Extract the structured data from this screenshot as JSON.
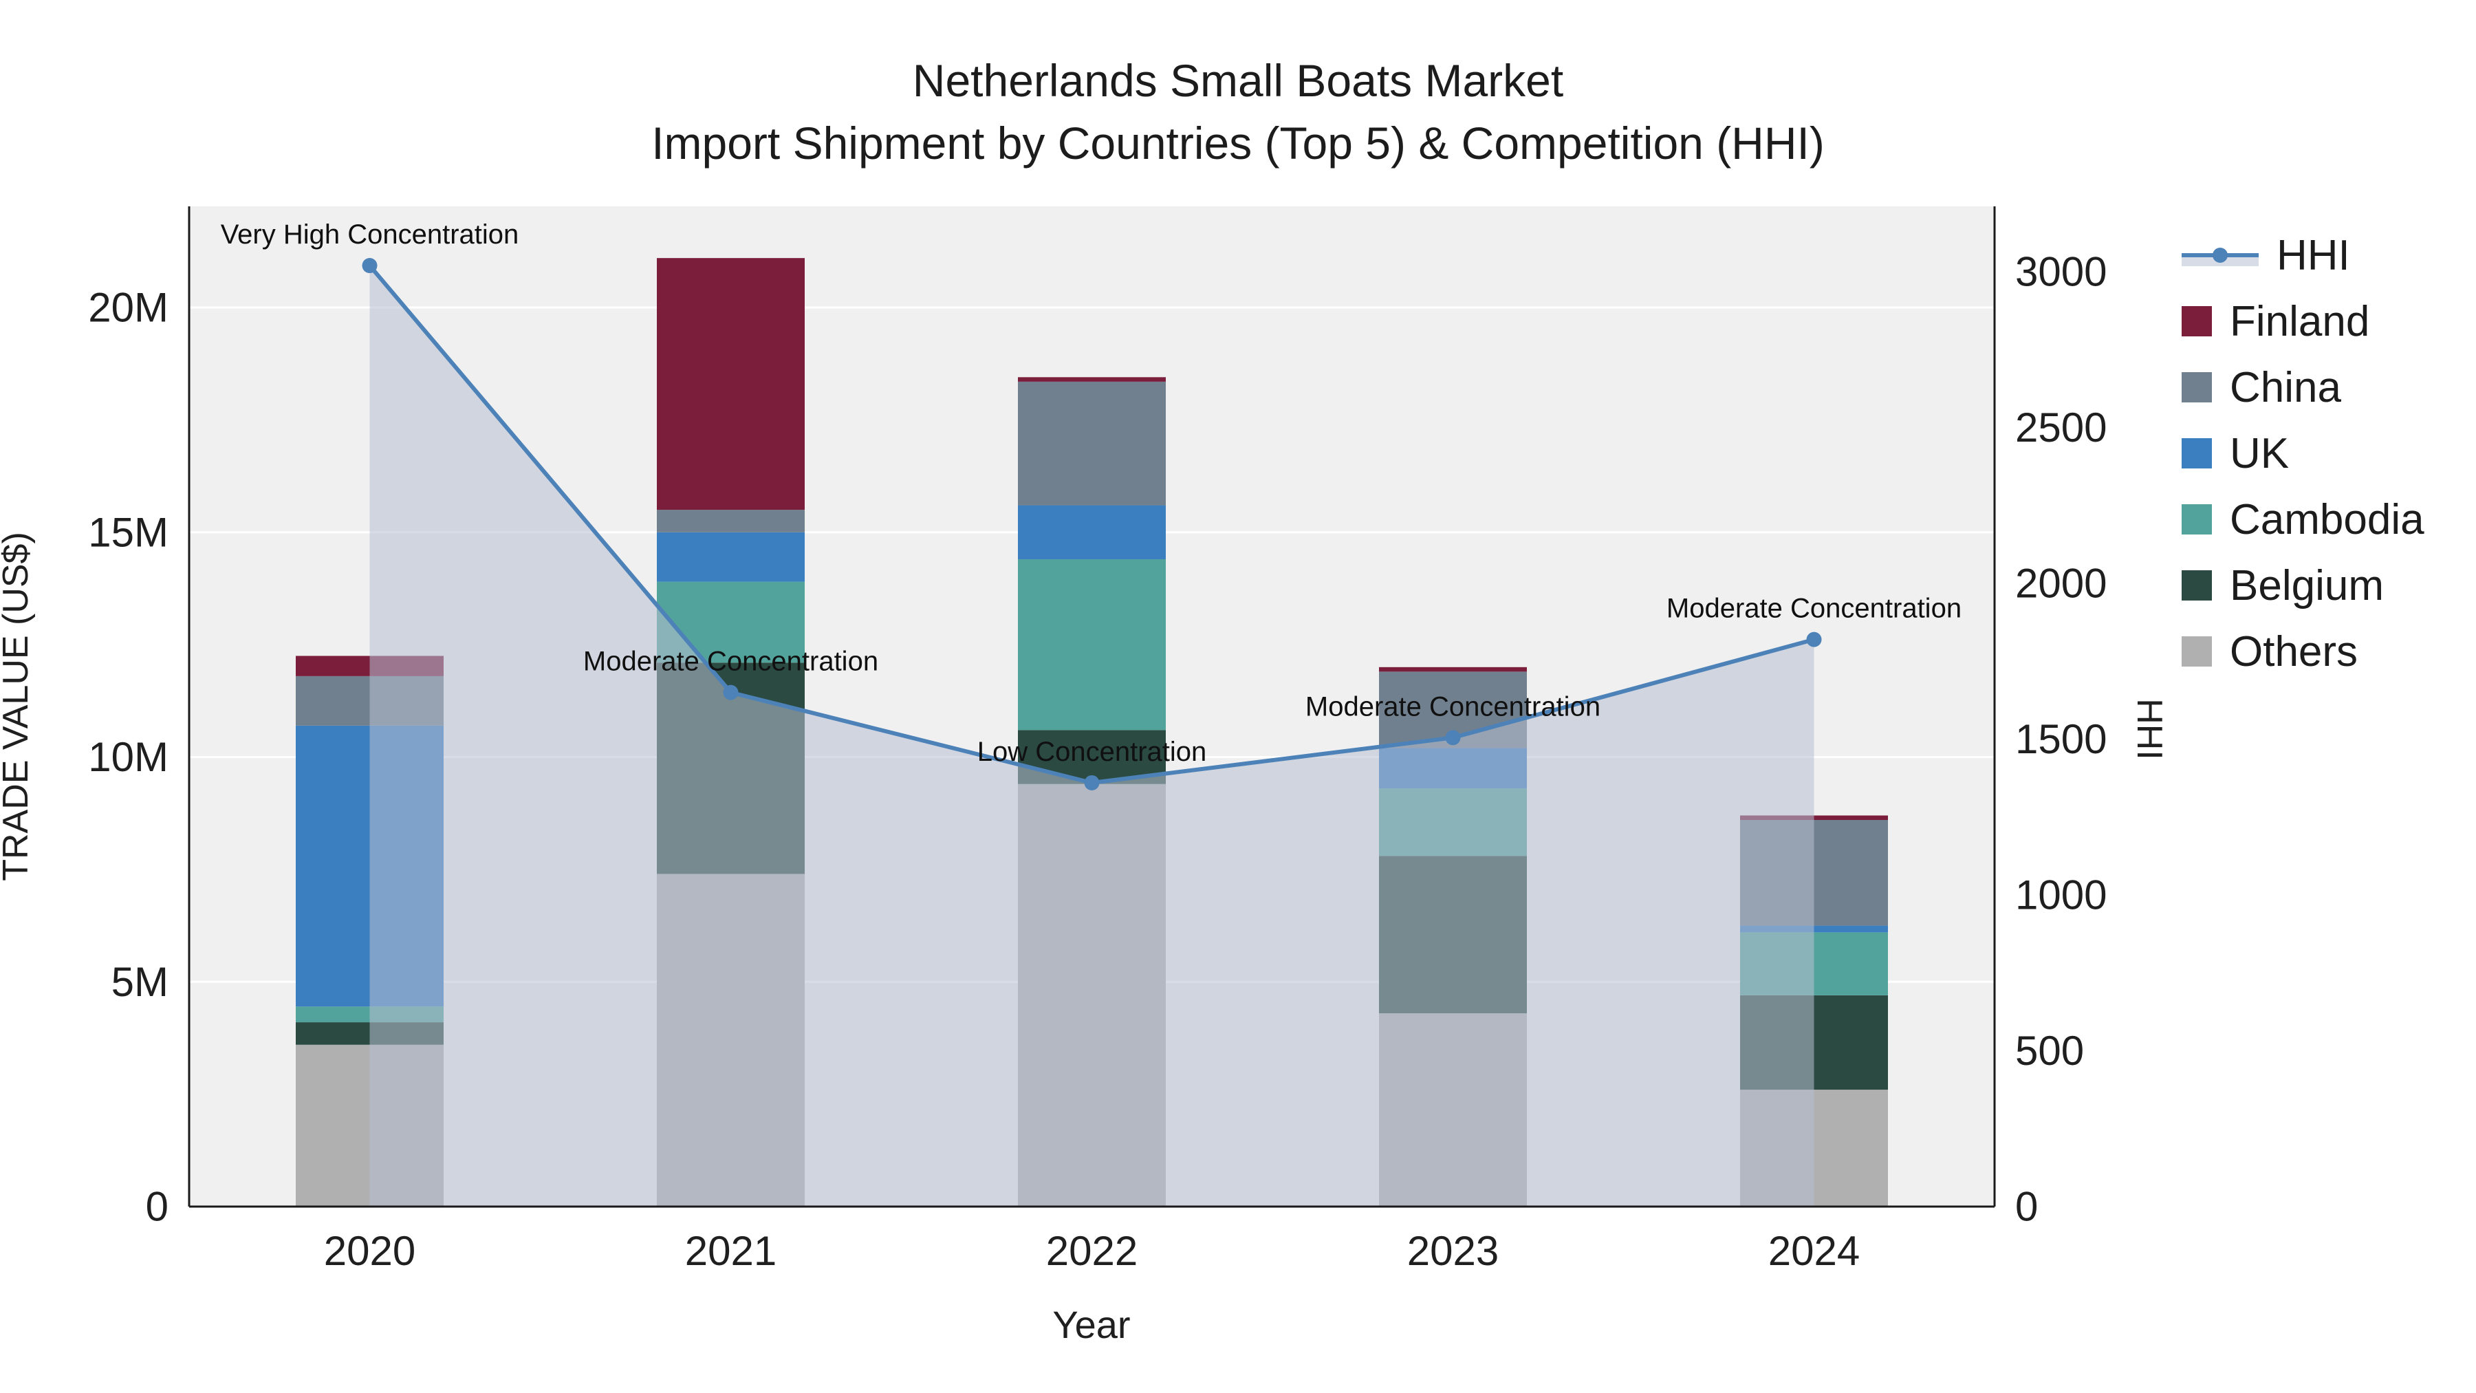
{
  "title": {
    "line1": "Netherlands Small Boats Market",
    "line2": "Import Shipment by Countries (Top 5) & Competition (HHI)"
  },
  "axes": {
    "y_left_title": "TRADE VALUE (US$)",
    "y_right_title": "HHI",
    "x_title": "Year",
    "y_left_ticks": [
      "0",
      "5M",
      "10M",
      "15M",
      "20M"
    ],
    "y_left_tick_values": [
      0,
      5000000,
      10000000,
      15000000,
      20000000
    ],
    "y_right_ticks": [
      "0",
      "500",
      "1000",
      "1500",
      "2000",
      "2500",
      "3000"
    ],
    "y_right_tick_values": [
      0,
      500,
      1000,
      1500,
      2000,
      2500,
      3000
    ],
    "y_left_max": 22250000,
    "y_right_max": 3210,
    "grid": "on",
    "plot_bg": "#f0f0f0"
  },
  "chart_data": {
    "type": "bar+line",
    "title": "Netherlands Small Boats Market — Import Shipment by Countries (Top 5) & Competition (HHI)",
    "xlabel": "Year",
    "ylabel_left": "TRADE VALUE (US$)",
    "ylabel_right": "HHI",
    "categories": [
      "2020",
      "2021",
      "2022",
      "2023",
      "2024"
    ],
    "bar_series": [
      {
        "name": "Others",
        "color": "#b0b0b0",
        "values": [
          3600000,
          7400000,
          9400000,
          4300000,
          2600000
        ]
      },
      {
        "name": "Belgium",
        "color": "#2b4a42",
        "values": [
          500000,
          4700000,
          1200000,
          3500000,
          2100000
        ]
      },
      {
        "name": "Cambodia",
        "color": "#52a39c",
        "values": [
          350000,
          1800000,
          3800000,
          1500000,
          1400000
        ]
      },
      {
        "name": "UK",
        "color": "#3c7fc0",
        "values": [
          6250000,
          1100000,
          1200000,
          900000,
          150000
        ]
      },
      {
        "name": "China",
        "color": "#71808f",
        "values": [
          1100000,
          500000,
          2750000,
          1700000,
          2350000
        ]
      },
      {
        "name": "Finland",
        "color": "#7a1e3c",
        "values": [
          450000,
          5600000,
          100000,
          100000,
          100000
        ]
      }
    ],
    "line_series": {
      "name": "HHI",
      "color": "#4d82b8",
      "fill_color": "rgba(182,192,209,0.55)",
      "values": [
        3020,
        1650,
        1360,
        1505,
        1820
      ]
    },
    "annotations": [
      {
        "x": "2020",
        "text": "Very High Concentration"
      },
      {
        "x": "2021",
        "text": "Moderate Concentration"
      },
      {
        "x": "2022",
        "text": "Low Concentration"
      },
      {
        "x": "2023",
        "text": "Moderate Concentration"
      },
      {
        "x": "2024",
        "text": "Moderate Concentration"
      }
    ],
    "legend": [
      "HHI",
      "Finland",
      "China",
      "UK",
      "Cambodia",
      "Belgium",
      "Others"
    ],
    "legend_position": "right"
  }
}
